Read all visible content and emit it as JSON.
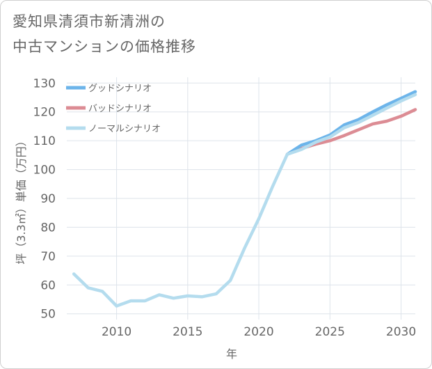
{
  "title_line1": "愛知県清須市新清洲の",
  "title_line2": "中古マンションの価格推移",
  "chart_data": {
    "type": "line",
    "title": "愛知県清須市新清洲の中古マンションの価格推移",
    "xlabel": "年",
    "ylabel": "坪（3.3㎡）単価（万円）",
    "xlim": [
      2006.5,
      2031
    ],
    "ylim": [
      48,
      132
    ],
    "xticks": [
      2010,
      2015,
      2020,
      2025,
      2030
    ],
    "yticks": [
      50,
      60,
      70,
      80,
      90,
      100,
      110,
      120,
      130
    ],
    "grid": true,
    "legend_position": "top-left",
    "series": [
      {
        "name": "グッドシナリオ",
        "color": "#6cb4ea",
        "x": [
          2022,
          2023,
          2024,
          2025,
          2026,
          2027,
          2028,
          2029,
          2030,
          2031
        ],
        "y": [
          105.3,
          108.5,
          110.0,
          112.0,
          115.5,
          117.3,
          120.0,
          122.5,
          124.7,
          127.0
        ]
      },
      {
        "name": "バッドシナリオ",
        "color": "#dc8c94",
        "x": [
          2022,
          2023,
          2024,
          2025,
          2026,
          2027,
          2028,
          2029,
          2030,
          2031
        ],
        "y": [
          105.3,
          107.3,
          108.8,
          110.0,
          111.8,
          113.8,
          115.8,
          116.8,
          118.5,
          120.8
        ]
      },
      {
        "name": "ノーマルシナリオ",
        "color": "#b4dcee",
        "x": [
          2007,
          2008,
          2009,
          2010,
          2011,
          2012,
          2013,
          2014,
          2015,
          2016,
          2017,
          2018,
          2019,
          2020,
          2021,
          2022,
          2023,
          2024,
          2025,
          2026,
          2027,
          2028,
          2029,
          2030,
          2031
        ],
        "y": [
          63.8,
          59.0,
          57.8,
          52.7,
          54.5,
          54.5,
          56.6,
          55.4,
          56.2,
          55.9,
          56.9,
          61.6,
          72.8,
          83.0,
          94.5,
          105.3,
          107.0,
          109.5,
          111.3,
          114.5,
          116.3,
          118.8,
          121.3,
          123.8,
          126.0
        ]
      }
    ]
  }
}
